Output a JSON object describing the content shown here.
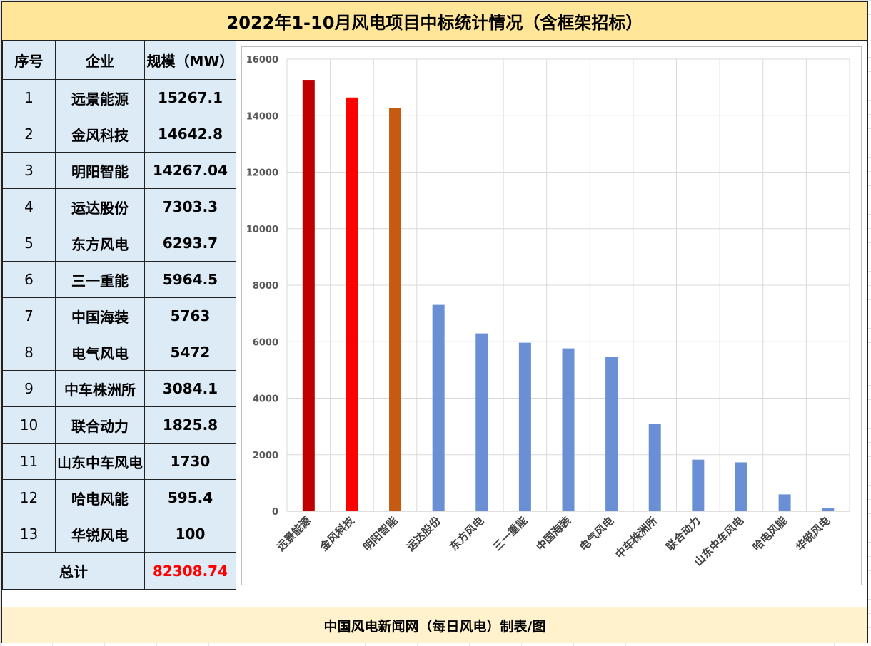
{
  "title": "2022年1-10月风电项目中标统计情况（含框架招标）",
  "footer": "中国风电新闻网（每日风电）制表/图",
  "table": {
    "headers": [
      "序号",
      "企业",
      "规模（MW）"
    ],
    "rows": [
      {
        "no": "1",
        "company": "远景能源",
        "mw": "15267.1"
      },
      {
        "no": "2",
        "company": "金风科技",
        "mw": "14642.8"
      },
      {
        "no": "3",
        "company": "明阳智能",
        "mw": "14267.04"
      },
      {
        "no": "4",
        "company": "运达股份",
        "mw": "7303.3"
      },
      {
        "no": "5",
        "company": "东方风电",
        "mw": "6293.7"
      },
      {
        "no": "6",
        "company": "三一重能",
        "mw": "5964.5"
      },
      {
        "no": "7",
        "company": "中国海装",
        "mw": "5763"
      },
      {
        "no": "8",
        "company": "电气风电",
        "mw": "5472"
      },
      {
        "no": "9",
        "company": "中车株洲所",
        "mw": "3084.1"
      },
      {
        "no": "10",
        "company": "联合动力",
        "mw": "1825.8"
      },
      {
        "no": "11",
        "company": "山东中车风电",
        "mw": "1730"
      },
      {
        "no": "12",
        "company": "哈电风能",
        "mw": "595.4"
      },
      {
        "no": "13",
        "company": "华锐风电",
        "mw": "100"
      }
    ],
    "total_label": "总计",
    "total_value": "82308.74"
  },
  "chart_data": {
    "type": "bar",
    "categories": [
      "远景能源",
      "金风科技",
      "明阳智能",
      "运达股份",
      "东方风电",
      "三一重能",
      "中国海装",
      "电气风电",
      "中车株洲所",
      "联合动力",
      "山东中车风电",
      "哈电风能",
      "华锐风电"
    ],
    "values": [
      15267.1,
      14642.8,
      14267.04,
      7303.3,
      6293.7,
      5964.5,
      5763,
      5472,
      3084.1,
      1825.8,
      1730,
      595.4,
      100
    ],
    "bar_colors": [
      "#c00000",
      "#ff0000",
      "#c55a11",
      "#6a8fd4",
      "#6a8fd4",
      "#6a8fd4",
      "#6a8fd4",
      "#6a8fd4",
      "#6a8fd4",
      "#6a8fd4",
      "#6a8fd4",
      "#6a8fd4",
      "#6a8fd4"
    ],
    "ylim": [
      0,
      16000
    ],
    "yticks": [
      0,
      2000,
      4000,
      6000,
      8000,
      10000,
      12000,
      14000,
      16000
    ],
    "grid": true,
    "legend": "none"
  }
}
